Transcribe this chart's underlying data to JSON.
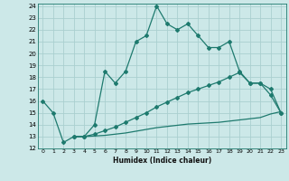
{
  "xlabel": "Humidex (Indice chaleur)",
  "bg_color": "#cce8e8",
  "line_color": "#1e7a6e",
  "grid_color": "#aacfcf",
  "xlim": [
    -0.5,
    23.5
  ],
  "ylim": [
    12,
    24.2
  ],
  "xticks": [
    0,
    1,
    2,
    3,
    4,
    5,
    6,
    7,
    8,
    9,
    10,
    11,
    12,
    13,
    14,
    15,
    16,
    17,
    18,
    19,
    20,
    21,
    22,
    23
  ],
  "yticks": [
    12,
    13,
    14,
    15,
    16,
    17,
    18,
    19,
    20,
    21,
    22,
    23,
    24
  ],
  "line1_x": [
    0,
    1,
    2,
    3,
    4,
    5,
    6,
    7,
    8,
    9,
    10,
    11,
    12,
    13,
    14,
    15,
    16,
    17,
    18,
    19,
    20,
    21,
    22,
    23
  ],
  "line1_y": [
    16.0,
    15.0,
    12.5,
    13.0,
    13.0,
    14.0,
    18.5,
    17.5,
    18.5,
    21.0,
    21.5,
    24.0,
    22.5,
    22.0,
    22.5,
    21.5,
    20.5,
    20.5,
    21.0,
    18.5,
    17.5,
    17.5,
    16.5,
    15.0
  ],
  "line2_x": [
    3,
    4,
    5,
    6,
    7,
    8,
    9,
    10,
    11,
    12,
    13,
    14,
    15,
    16,
    17,
    18,
    19,
    20,
    21,
    22,
    23
  ],
  "line2_y": [
    13.0,
    13.0,
    13.2,
    13.5,
    13.8,
    14.2,
    14.6,
    15.0,
    15.5,
    15.9,
    16.3,
    16.7,
    17.0,
    17.3,
    17.6,
    18.0,
    18.4,
    17.5,
    17.5,
    17.0,
    15.0
  ],
  "line3_x": [
    3,
    4,
    5,
    6,
    7,
    8,
    9,
    10,
    11,
    12,
    13,
    14,
    15,
    16,
    17,
    18,
    19,
    20,
    21,
    22,
    23
  ],
  "line3_y": [
    13.0,
    13.0,
    13.05,
    13.1,
    13.2,
    13.3,
    13.45,
    13.6,
    13.75,
    13.85,
    13.95,
    14.05,
    14.1,
    14.15,
    14.2,
    14.3,
    14.4,
    14.5,
    14.6,
    14.9,
    15.1
  ]
}
